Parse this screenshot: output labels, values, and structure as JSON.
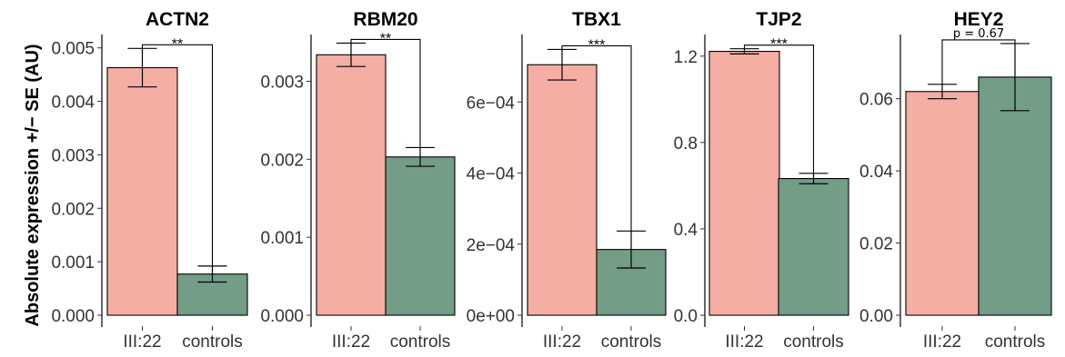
{
  "chart_data": {
    "type": "bar",
    "ylabel": "Absolute expression +/− SE (AU)",
    "colors": {
      "III:22": "#f4aea3",
      "controls": "#739d86"
    },
    "panels": [
      {
        "title": "ACTN2",
        "categories": [
          "III:22",
          "controls"
        ],
        "values": [
          0.00463,
          0.00077
        ],
        "se": [
          0.00036,
          0.00015
        ],
        "ylim": [
          0,
          0.00525
        ],
        "yticks": [
          0,
          0.001,
          0.002,
          0.003,
          0.004,
          0.005
        ],
        "ytick_labels": [
          "0.000",
          "0.001",
          "0.002",
          "0.003",
          "0.004",
          "0.005"
        ],
        "significance": "**"
      },
      {
        "title": "RBM20",
        "categories": [
          "III:22",
          "controls"
        ],
        "values": [
          0.00334,
          0.00203
        ],
        "se": [
          0.00015,
          0.00012
        ],
        "ylim": [
          0,
          0.0036
        ],
        "yticks": [
          0,
          0.001,
          0.002,
          0.003
        ],
        "ytick_labels": [
          "0.000",
          "0.001",
          "0.002",
          "0.003"
        ],
        "significance": "**"
      },
      {
        "title": "TBX1",
        "categories": [
          "III:22",
          "controls"
        ],
        "values": [
          0.000705,
          0.000185
        ],
        "se": [
          4.3e-05,
          5.2e-05
        ],
        "ylim": [
          0,
          0.00079
        ],
        "yticks": [
          0,
          0.0002,
          0.0004,
          0.0006
        ],
        "ytick_labels": [
          "0e+00",
          "2e−04",
          "4e−04",
          "6e−04"
        ],
        "significance": "***"
      },
      {
        "title": "TJP2",
        "categories": [
          "III:22",
          "controls"
        ],
        "values": [
          1.222,
          0.633
        ],
        "se": [
          0.012,
          0.024
        ],
        "ylim": [
          0,
          1.3
        ],
        "yticks": [
          0,
          0.4,
          0.8,
          1.2
        ],
        "ytick_labels": [
          "0.0",
          "0.4",
          "0.8",
          "1.2"
        ],
        "significance": "***"
      },
      {
        "title": "HEY2",
        "categories": [
          "III:22",
          "controls"
        ],
        "values": [
          0.062,
          0.066
        ],
        "se": [
          0.002,
          0.0093
        ],
        "ylim": [
          0,
          0.0778
        ],
        "yticks": [
          0,
          0.02,
          0.04,
          0.06
        ],
        "ytick_labels": [
          "0.00",
          "0.02",
          "0.04",
          "0.06"
        ],
        "significance": "p = 0.67"
      }
    ]
  }
}
